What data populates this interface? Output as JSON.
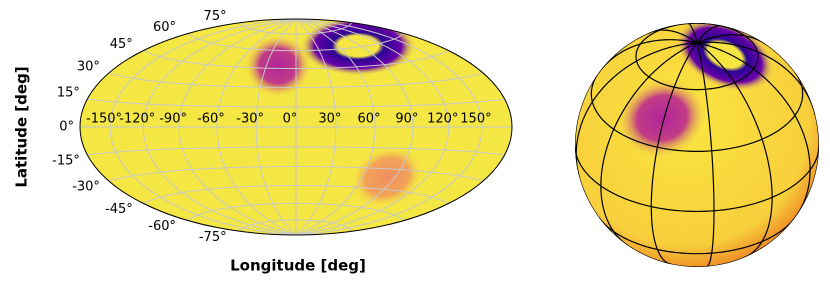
{
  "chart_data": {
    "type": "projection",
    "xlabel": "Longitude [deg]",
    "ylabel": "Latitude [deg]",
    "xlim": [
      -180,
      180
    ],
    "ylim": [
      -90,
      90
    ],
    "xticks": [
      {
        "value": -150,
        "label": "-150°"
      },
      {
        "value": -120,
        "label": "-120°"
      },
      {
        "value": -90,
        "label": "-90°"
      },
      {
        "value": -60,
        "label": "-60°"
      },
      {
        "value": -30,
        "label": "-30°"
      },
      {
        "value": 0,
        "label": "0°"
      },
      {
        "value": 30,
        "label": "30°"
      },
      {
        "value": 60,
        "label": "60°"
      },
      {
        "value": 90,
        "label": "90°"
      },
      {
        "value": 120,
        "label": "120°"
      },
      {
        "value": 150,
        "label": "150°"
      }
    ],
    "yticks": [
      {
        "value": -75,
        "label": "-75°"
      },
      {
        "value": -60,
        "label": "-60°"
      },
      {
        "value": -45,
        "label": "-45°"
      },
      {
        "value": -30,
        "label": "-30°"
      },
      {
        "value": -15,
        "label": "-15°"
      },
      {
        "value": 0,
        "label": "0°"
      },
      {
        "value": 15,
        "label": "15°"
      },
      {
        "value": 30,
        "label": "30°"
      },
      {
        "value": 45,
        "label": "45°"
      },
      {
        "value": 60,
        "label": "60°"
      },
      {
        "value": 75,
        "label": "75°"
      }
    ],
    "grid": true
  }
}
